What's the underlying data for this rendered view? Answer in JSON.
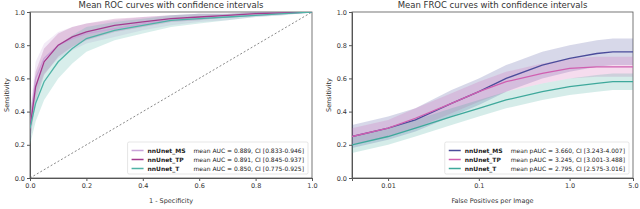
{
  "chart_data": [
    {
      "type": "line",
      "title": "Mean ROC curves with confidence intervals",
      "x_label": "1 - Specificity",
      "y_label": "Sensitivity",
      "xlim": [
        0,
        1
      ],
      "ylim": [
        0,
        1
      ],
      "xticks": [
        {
          "value": 0,
          "label": "0.0"
        },
        0.2,
        0.4,
        0.6,
        0.8,
        {
          "value": 1,
          "label": "1.0"
        }
      ],
      "yticks": [
        {
          "value": 0,
          "label": "0.0"
        },
        0.2,
        0.4,
        0.6,
        0.8,
        {
          "value": 1,
          "label": "1.0"
        }
      ],
      "grid": false,
      "legend": "lower right",
      "x": [
        0,
        0.02,
        0.05,
        0.1,
        0.15,
        0.2,
        0.3,
        0.4,
        0.5,
        0.6,
        0.7,
        0.8,
        0.9,
        1
      ],
      "reference_line": {
        "x": [
          0,
          1
        ],
        "values": [
          0,
          1
        ],
        "line_style": "dashed"
      },
      "series": [
        {
          "name": "nnUnet_MS",
          "legend_label": "mean AUC = 0.889, CI [0.833-0.946]",
          "color": "#c9a3d9",
          "values": [
            0.3,
            0.6,
            0.72,
            0.8,
            0.84,
            0.87,
            0.9,
            0.93,
            0.95,
            0.96,
            0.97,
            0.98,
            0.99,
            1
          ],
          "lower": [
            0.22,
            0.5,
            0.63,
            0.72,
            0.77,
            0.81,
            0.85,
            0.89,
            0.92,
            0.94,
            0.95,
            0.97,
            0.98,
            1
          ],
          "upper": [
            0.4,
            0.7,
            0.81,
            0.88,
            0.91,
            0.93,
            0.95,
            0.97,
            0.98,
            0.99,
            0.99,
            1,
            1,
            1
          ]
        },
        {
          "name": "nnUnet_TP",
          "legend_label": "mean AUC = 0.891, CI [0.845-0.937]",
          "color": "#a33a8e",
          "values": [
            0.3,
            0.55,
            0.7,
            0.8,
            0.85,
            0.88,
            0.92,
            0.94,
            0.96,
            0.97,
            0.98,
            0.99,
            0.995,
            1
          ],
          "lower": [
            0.22,
            0.46,
            0.62,
            0.73,
            0.79,
            0.83,
            0.88,
            0.91,
            0.94,
            0.95,
            0.97,
            0.98,
            0.99,
            1
          ],
          "upper": [
            0.38,
            0.64,
            0.78,
            0.87,
            0.91,
            0.93,
            0.96,
            0.97,
            0.98,
            0.99,
            0.99,
            1,
            1,
            1
          ]
        },
        {
          "name": "nnUnet_T",
          "legend_label": "mean AUC = 0.850, CI [0.775-0.925]",
          "color": "#4fb3a6",
          "values": [
            0.3,
            0.45,
            0.58,
            0.7,
            0.78,
            0.84,
            0.89,
            0.92,
            0.95,
            0.96,
            0.97,
            0.98,
            0.99,
            1
          ],
          "lower": [
            0.2,
            0.34,
            0.47,
            0.6,
            0.69,
            0.76,
            0.83,
            0.87,
            0.91,
            0.93,
            0.95,
            0.97,
            0.98,
            1
          ],
          "upper": [
            0.4,
            0.56,
            0.69,
            0.8,
            0.86,
            0.91,
            0.94,
            0.96,
            0.98,
            0.99,
            0.99,
            1,
            1,
            1
          ]
        }
      ]
    },
    {
      "type": "line",
      "title": "Mean FROC curves with confidence intervals",
      "x_label": "False Positives per Image",
      "y_label": "Sensitivity",
      "log": "x",
      "xlim": [
        0.004,
        5
      ],
      "ylim": [
        0,
        1
      ],
      "xticks": [
        0.01,
        0.1,
        {
          "value": 1,
          "label": "1.0"
        },
        {
          "value": 5,
          "label": "5.0"
        }
      ],
      "yticks": [
        {
          "value": 0,
          "label": "0.0"
        },
        0.2,
        0.4,
        0.6,
        0.8,
        {
          "value": 1,
          "label": "1.0"
        }
      ],
      "grid": false,
      "legend": "lower right",
      "x": [
        0.004,
        0.01,
        0.02,
        0.05,
        0.1,
        0.2,
        0.5,
        1,
        2,
        3,
        5
      ],
      "series": [
        {
          "name": "nnUnet_MS",
          "legend_label": "mean pAUC = 3.660, CI [3.243-4.007]",
          "color": "#4b4c9b",
          "values": [
            0.25,
            0.3,
            0.35,
            0.45,
            0.52,
            0.6,
            0.68,
            0.72,
            0.75,
            0.76,
            0.76
          ],
          "lower": [
            0.18,
            0.23,
            0.28,
            0.37,
            0.44,
            0.52,
            0.6,
            0.64,
            0.67,
            0.68,
            0.68
          ],
          "upper": [
            0.32,
            0.37,
            0.42,
            0.53,
            0.6,
            0.68,
            0.76,
            0.8,
            0.83,
            0.84,
            0.84
          ]
        },
        {
          "name": "nnUnet_TP",
          "legend_label": "mean pAUC = 3.245, CI [3.001-3.488]",
          "color": "#d05fb0",
          "values": [
            0.25,
            0.3,
            0.36,
            0.45,
            0.52,
            0.58,
            0.63,
            0.66,
            0.67,
            0.67,
            0.67
          ],
          "lower": [
            0.2,
            0.25,
            0.3,
            0.39,
            0.46,
            0.52,
            0.57,
            0.6,
            0.61,
            0.61,
            0.61
          ],
          "upper": [
            0.3,
            0.35,
            0.42,
            0.51,
            0.58,
            0.64,
            0.69,
            0.72,
            0.73,
            0.73,
            0.73
          ]
        },
        {
          "name": "nnUnet_T",
          "legend_label": "mean pAUC = 2.795, CI [2.575-3.016]",
          "color": "#3ea89b",
          "values": [
            0.2,
            0.25,
            0.3,
            0.37,
            0.42,
            0.47,
            0.52,
            0.55,
            0.57,
            0.58,
            0.58
          ],
          "lower": [
            0.15,
            0.2,
            0.25,
            0.32,
            0.37,
            0.42,
            0.47,
            0.5,
            0.52,
            0.53,
            0.53
          ],
          "upper": [
            0.25,
            0.3,
            0.35,
            0.42,
            0.47,
            0.52,
            0.57,
            0.6,
            0.62,
            0.63,
            0.63
          ]
        }
      ]
    }
  ]
}
